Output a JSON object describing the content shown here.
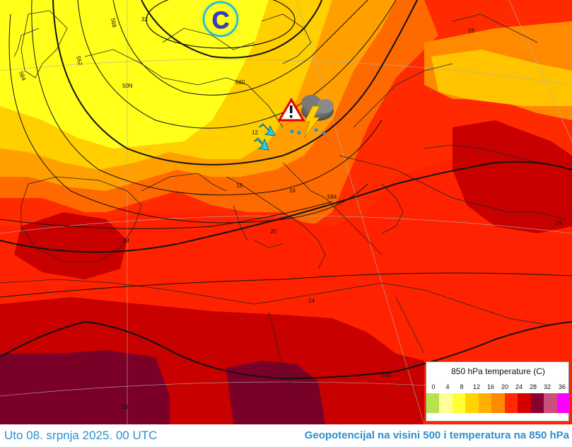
{
  "footer": {
    "date": "Uto 08. srpnja 2025. 00 UTC",
    "title": "Geopotencijal na visini 500 i temperatura na 850 hPa"
  },
  "legend": {
    "title": "850 hPa temperature (C)",
    "ticks": [
      "0",
      "4",
      "8",
      "12",
      "16",
      "20",
      "24",
      "28",
      "32",
      "36"
    ],
    "colors": [
      "#b5e34c",
      "#ffff99",
      "#ffff33",
      "#ffd400",
      "#ffb000",
      "#ff8a00",
      "#ff2a00",
      "#d40000",
      "#8a0030",
      "#c8507a",
      "#ff00ff"
    ]
  },
  "map": {
    "low_symbol": "C",
    "contour_labels": [
      "568",
      "552",
      "584",
      "560",
      "584",
      "592"
    ],
    "temperature_labels": [
      "12",
      "16",
      "16",
      "20",
      "24",
      "24",
      "24",
      "28",
      "32",
      "16"
    ],
    "graticule_labels": [
      "50N"
    ],
    "palette": {
      "ocean_yellow": "#ffff1a",
      "light_orange": "#ffcf00",
      "orange": "#ffa000",
      "orange_red": "#ff6a00",
      "red": "#ff2200",
      "dark_red": "#c80000",
      "maroon": "#7a0028",
      "cyan_arrow": "#1fd3f0",
      "low_ring": "#1fbfe0",
      "low_letter": "#3b3bd6"
    }
  }
}
